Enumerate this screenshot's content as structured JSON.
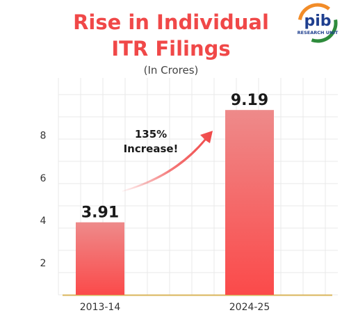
{
  "logo": {
    "name": "pib-research-unit-logo",
    "letters": "pib",
    "caption": "RESEARCH UNIT",
    "colors": {
      "saffron": "#f28c28",
      "green": "#2e8b3c",
      "navy": "#1f3f8f"
    }
  },
  "chart_data": {
    "type": "bar",
    "title": "Rise in Individual ITR Filings",
    "title_lines": [
      "Rise in Individual",
      "ITR Filings"
    ],
    "subtitle": "(In Crores)",
    "categories": [
      "2013-14",
      "2024-25"
    ],
    "values": [
      3.91,
      9.19
    ],
    "value_labels": [
      "3.91",
      "9.19"
    ],
    "ylim": [
      0.5,
      10.7
    ],
    "y_ticks": [
      2,
      4,
      6,
      8
    ],
    "y_tick_labels": [
      "2",
      "4",
      "6",
      "8"
    ],
    "grid": true,
    "annotation": {
      "lines": [
        "135%",
        "Increase!"
      ]
    },
    "colors": {
      "title": "#f04848",
      "bar_top": "#ee8a8a",
      "bar_bottom": "#fb4a4a",
      "arrow": "#f04848",
      "grid": "#e9e9e9",
      "axis": "#d9b45a"
    }
  }
}
